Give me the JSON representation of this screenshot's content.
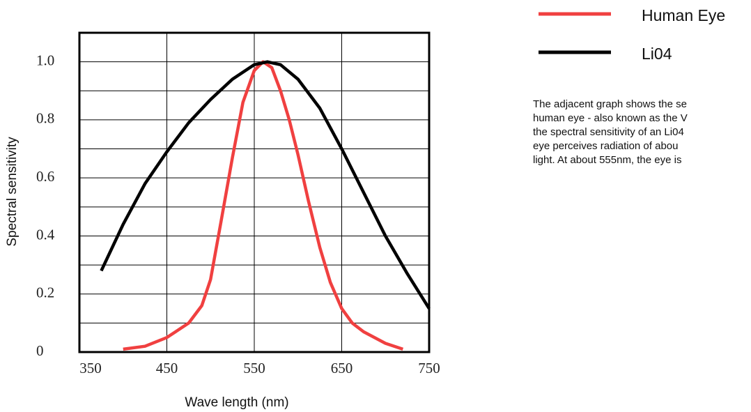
{
  "chart_data": {
    "type": "line",
    "xlabel": "Wave length (nm)",
    "ylabel": "Spectral sensitivity",
    "xlim": [
      350,
      750
    ],
    "xticks": [
      350,
      450,
      550,
      650,
      750
    ],
    "ylim": [
      0,
      1.1
    ],
    "yticks": [
      0,
      0.2,
      0.4,
      0.6,
      0.8,
      {
        "value": 1,
        "label": "1.0"
      }
    ],
    "yminorticks": [
      0.1,
      0.3,
      0.5,
      0.7,
      0.9
    ],
    "grid": true,
    "series": [
      {
        "name": "Human Eye",
        "color": "#f04040",
        "x": [
          400,
          425,
          450,
          475,
          490,
          500,
          512,
          525,
          537,
          550,
          560,
          570,
          580,
          590,
          600,
          612,
          625,
          637,
          650,
          662,
          675,
          700,
          720
        ],
        "values": [
          0.01,
          0.02,
          0.05,
          0.1,
          0.16,
          0.25,
          0.45,
          0.67,
          0.86,
          0.97,
          1.0,
          0.98,
          0.9,
          0.8,
          0.68,
          0.52,
          0.36,
          0.24,
          0.15,
          0.1,
          0.07,
          0.03,
          0.01
        ]
      },
      {
        "name": "Li04",
        "color": "#000000",
        "x": [
          375,
          400,
          425,
          450,
          475,
          500,
          525,
          550,
          565,
          580,
          600,
          625,
          650,
          675,
          700,
          725,
          750
        ],
        "values": [
          0.28,
          0.44,
          0.58,
          0.69,
          0.79,
          0.87,
          0.94,
          0.99,
          1.0,
          0.99,
          0.94,
          0.84,
          0.7,
          0.55,
          0.4,
          0.27,
          0.15
        ]
      }
    ],
    "description": [
      "The adjacent graph shows the se",
      "human eye - also known as the V",
      "the spectral sensitivity of an Li04",
      "eye perceives radiation of abou",
      "light. At about 555nm, the eye is"
    ]
  }
}
